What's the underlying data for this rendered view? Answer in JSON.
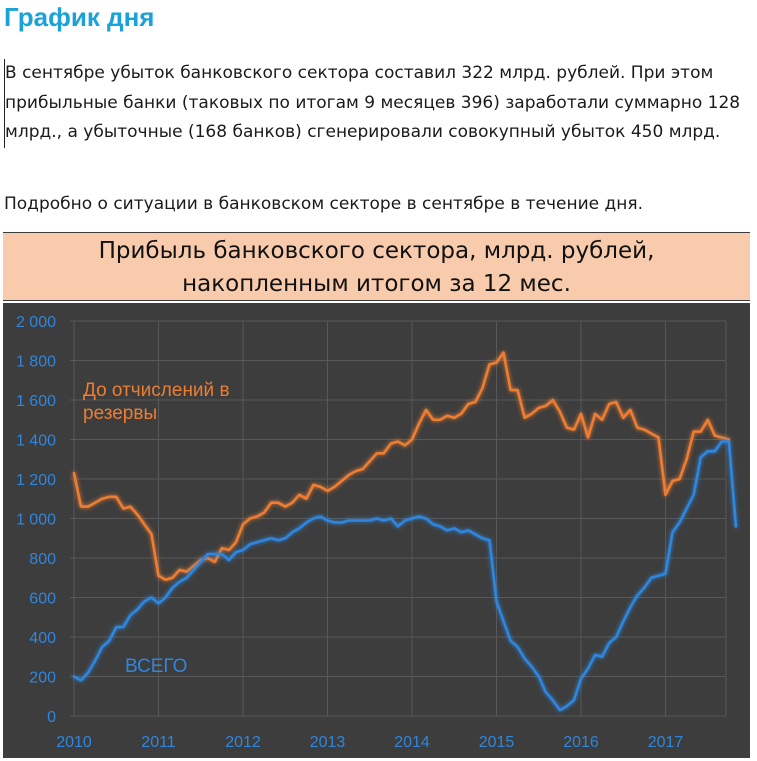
{
  "page": {
    "title": "График дня",
    "paragraph1": "В сентябре убыток банковского сектора составил 322 млрд. рублей. При этом прибыльные банки (таковых по итогам 9 месяцев 396) заработали суммарно 128 млрд., а убыточные (168 банков) сгенерировали совокупный убыток 450 млрд.",
    "paragraph2": "Подробно о ситуации в банковском секторе в сентябре в течение дня."
  },
  "chart_header": {
    "line1": "Прибыль банковского сектора, млрд. рублей,",
    "line2": "накопленным итогом за 12 мес."
  },
  "chart_data": {
    "type": "line",
    "title": "Прибыль банковского сектора, млрд. рублей, накопленным итогом за 12 мес.",
    "xlabel": "",
    "ylabel": "",
    "x_start": "2010-01",
    "x_ticks": [
      "2010",
      "2011",
      "2012",
      "2013",
      "2014",
      "2015",
      "2016",
      "2017"
    ],
    "y_ticks": [
      "0",
      "200",
      "400",
      "600",
      "800",
      "1 000",
      "1 200",
      "1 400",
      "1 600",
      "1 800",
      "2 000"
    ],
    "ylim": [
      0,
      2000
    ],
    "grid": true,
    "background": "#3d3d3d",
    "series": [
      {
        "name": "До отчислений в резервы",
        "label_lines": [
          "До отчислений в",
          "резервы"
        ],
        "color": "#ed7d31",
        "values": [
          1230,
          1060,
          1060,
          1080,
          1100,
          1110,
          1110,
          1050,
          1060,
          1020,
          970,
          920,
          710,
          690,
          700,
          740,
          730,
          760,
          790,
          800,
          780,
          850,
          840,
          880,
          970,
          1000,
          1010,
          1030,
          1080,
          1080,
          1060,
          1080,
          1120,
          1100,
          1170,
          1160,
          1140,
          1160,
          1190,
          1220,
          1240,
          1250,
          1290,
          1330,
          1330,
          1380,
          1390,
          1370,
          1400,
          1480,
          1550,
          1500,
          1500,
          1520,
          1510,
          1530,
          1580,
          1590,
          1660,
          1780,
          1790,
          1840,
          1650,
          1650,
          1510,
          1530,
          1560,
          1570,
          1600,
          1540,
          1460,
          1450,
          1530,
          1410,
          1530,
          1500,
          1580,
          1590,
          1510,
          1550,
          1460,
          1450,
          1430,
          1410,
          1120,
          1190,
          1200,
          1300,
          1440,
          1440,
          1500,
          1420,
          1410,
          1400
        ]
      },
      {
        "name": "ВСЕГО",
        "label_lines": [
          "ВСЕГО"
        ],
        "color": "#2e86de",
        "values": [
          200,
          180,
          220,
          280,
          350,
          380,
          450,
          450,
          510,
          540,
          580,
          600,
          570,
          600,
          650,
          680,
          700,
          740,
          780,
          820,
          820,
          820,
          790,
          830,
          840,
          870,
          880,
          890,
          900,
          890,
          900,
          930,
          950,
          980,
          1000,
          1010,
          990,
          980,
          980,
          990,
          990,
          990,
          990,
          1000,
          990,
          1000,
          960,
          990,
          1000,
          1010,
          1000,
          970,
          960,
          940,
          950,
          930,
          940,
          920,
          900,
          890,
          580,
          480,
          380,
          350,
          290,
          250,
          200,
          120,
          80,
          30,
          50,
          80,
          190,
          240,
          310,
          300,
          370,
          400,
          480,
          550,
          610,
          650,
          700,
          710,
          720,
          930,
          980,
          1050,
          1120,
          1310,
          1340,
          1340,
          1390,
          1390,
          960
        ]
      }
    ]
  }
}
